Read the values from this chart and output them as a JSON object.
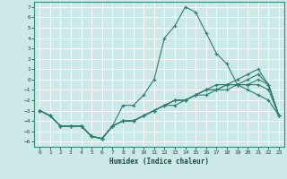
{
  "title": "",
  "xlabel": "Humidex (Indice chaleur)",
  "bg_color": "#cde8e8",
  "grid_color": "#ffffff",
  "line_color": "#2e7d6e",
  "xlim": [
    -0.5,
    23.5
  ],
  "ylim": [
    -6.5,
    7.5
  ],
  "xticks": [
    0,
    1,
    2,
    3,
    4,
    5,
    6,
    7,
    8,
    9,
    10,
    11,
    12,
    13,
    14,
    15,
    16,
    17,
    18,
    19,
    20,
    21,
    22,
    23
  ],
  "yticks": [
    -6,
    -5,
    -4,
    -3,
    -2,
    -1,
    0,
    1,
    2,
    3,
    4,
    5,
    6,
    7
  ],
  "lines": [
    {
      "x": [
        0,
        1,
        2,
        3,
        4,
        5,
        6,
        7,
        8,
        9,
        10,
        11,
        12,
        13,
        14,
        15,
        16,
        17,
        18,
        19,
        20,
        21,
        22,
        23
      ],
      "y": [
        -3,
        -3.5,
        -4.5,
        -4.5,
        -4.5,
        -5.5,
        -5.7,
        -4.5,
        -2.5,
        -2.5,
        -1.5,
        0,
        4,
        5.2,
        7,
        6.5,
        4.5,
        2.5,
        1.5,
        -0.5,
        -1,
        -1.5,
        -2,
        -3.5
      ]
    },
    {
      "x": [
        0,
        1,
        2,
        3,
        4,
        5,
        6,
        7,
        8,
        9,
        10,
        11,
        12,
        13,
        14,
        15,
        16,
        17,
        18,
        19,
        20,
        21,
        22,
        23
      ],
      "y": [
        -3,
        -3.5,
        -4.5,
        -4.5,
        -4.5,
        -5.5,
        -5.7,
        -4.5,
        -4,
        -4,
        -3.5,
        -3,
        -2.5,
        -2.5,
        -2,
        -1.5,
        -1,
        -1,
        -0.5,
        -0.5,
        -0.5,
        -0.5,
        -1,
        -3.5
      ]
    },
    {
      "x": [
        0,
        1,
        2,
        3,
        4,
        5,
        6,
        7,
        8,
        9,
        10,
        11,
        12,
        13,
        14,
        15,
        16,
        17,
        18,
        19,
        20,
        21,
        22,
        23
      ],
      "y": [
        -3,
        -3.5,
        -4.5,
        -4.5,
        -4.5,
        -5.5,
        -5.7,
        -4.5,
        -4,
        -4,
        -3.5,
        -3,
        -2.5,
        -2,
        -2,
        -1.5,
        -1.5,
        -1,
        -1,
        -0.5,
        -0.5,
        0,
        -0.5,
        -3.5
      ]
    },
    {
      "x": [
        0,
        1,
        2,
        3,
        4,
        5,
        6,
        7,
        8,
        9,
        10,
        11,
        12,
        13,
        14,
        15,
        16,
        17,
        18,
        19,
        20,
        21,
        22,
        23
      ],
      "y": [
        -3,
        -3.5,
        -4.5,
        -4.5,
        -4.5,
        -5.5,
        -5.7,
        -4.5,
        -4,
        -4,
        -3.5,
        -3,
        -2.5,
        -2,
        -2,
        -1.5,
        -1,
        -1,
        -0.5,
        -0.5,
        0,
        0.5,
        -0.5,
        -3.5
      ]
    },
    {
      "x": [
        0,
        1,
        2,
        3,
        4,
        5,
        6,
        7,
        8,
        9,
        10,
        11,
        12,
        13,
        14,
        15,
        16,
        17,
        18,
        19,
        20,
        21,
        22,
        23
      ],
      "y": [
        -3,
        -3.5,
        -4.5,
        -4.5,
        -4.5,
        -5.5,
        -5.7,
        -4.5,
        -4,
        -4,
        -3.5,
        -3,
        -2.5,
        -2,
        -2,
        -1.5,
        -1,
        -0.5,
        -0.5,
        0,
        0.5,
        1,
        -0.5,
        -3.5
      ]
    }
  ]
}
